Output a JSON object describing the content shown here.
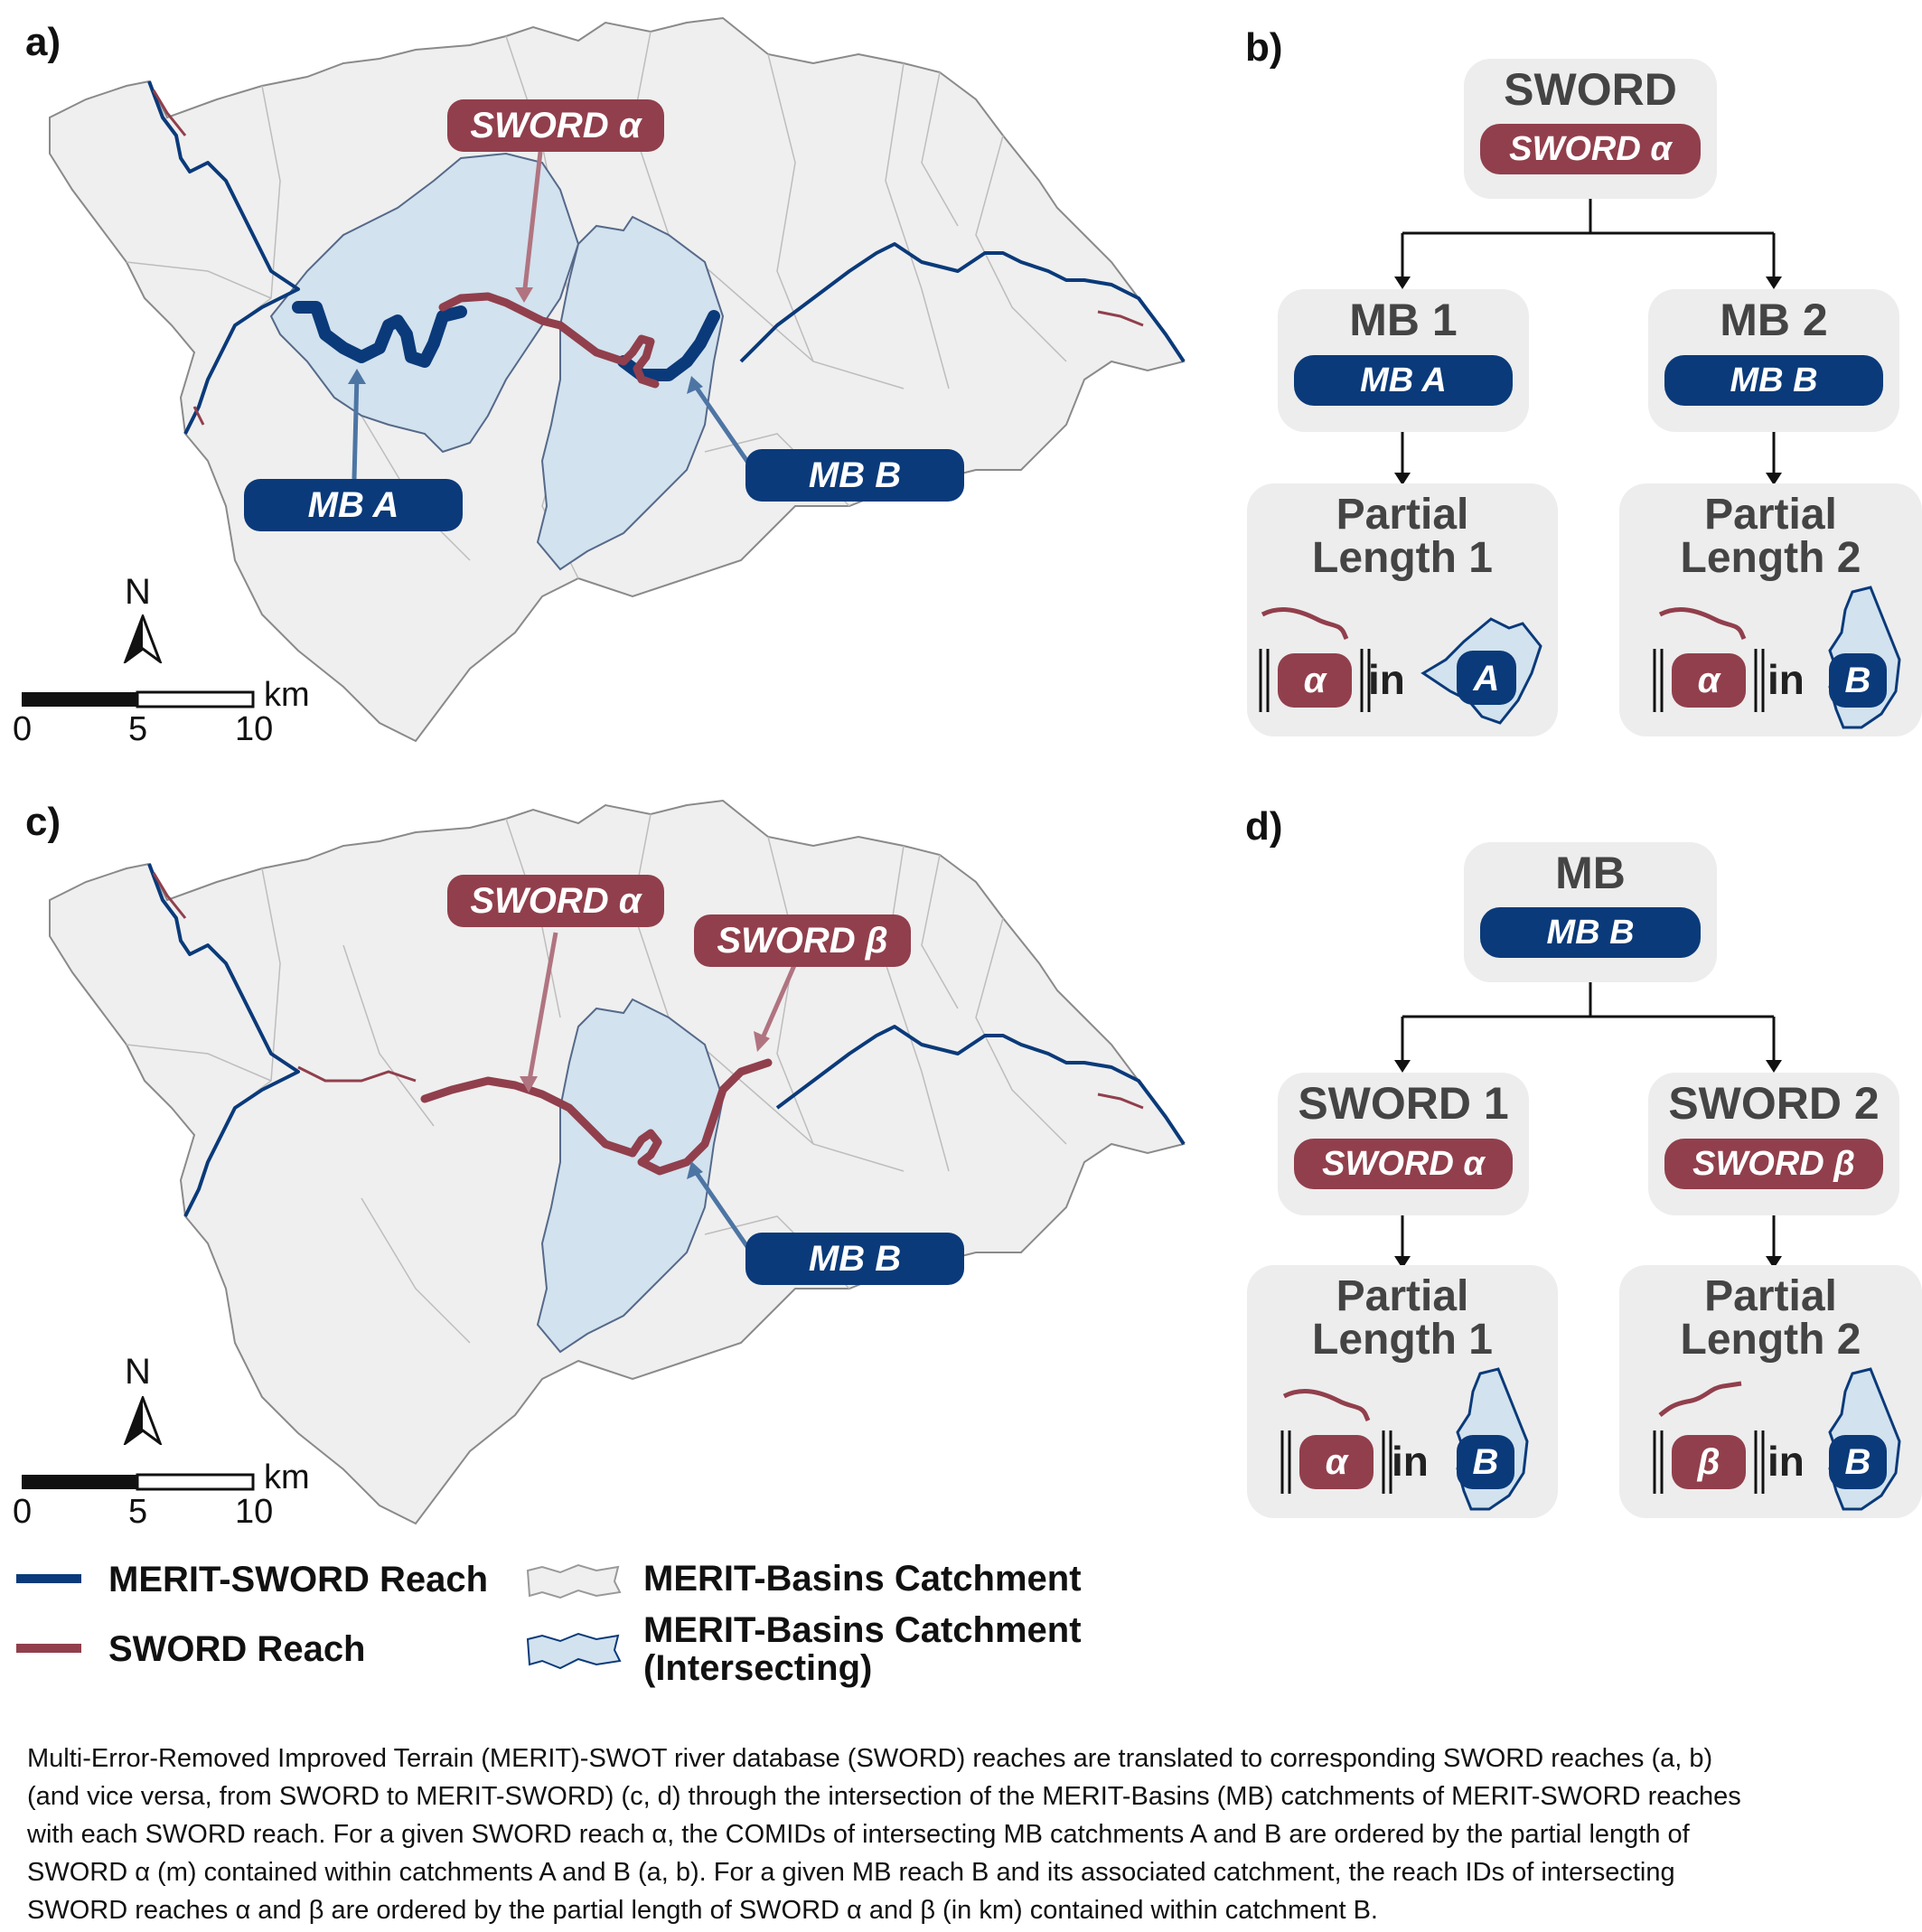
{
  "panels": {
    "a": "a)",
    "b": "b)",
    "c": "c)",
    "d": "d)"
  },
  "map_a": {
    "label_sword_alpha": "SWORD α",
    "label_mb_a": "MB A",
    "label_mb_b": "MB B",
    "north": "N",
    "scale_unit": "km",
    "scale_ticks": [
      "0",
      "5",
      "10"
    ]
  },
  "map_c": {
    "label_sword_alpha": "SWORD α",
    "label_sword_beta": "SWORD β",
    "label_mb_b": "MB B",
    "north": "N",
    "scale_unit": "km",
    "scale_ticks": [
      "0",
      "5",
      "10"
    ]
  },
  "tree_b": {
    "root_title": "SWORD",
    "root_pill": "SWORD α",
    "left_title": "MB 1",
    "left_pill": "MB A",
    "right_title": "MB 2",
    "right_pill": "MB B",
    "left_leaf_line1": "Partial",
    "left_leaf_line2": "Length 1",
    "right_leaf_line1": "Partial",
    "right_leaf_line2": "Length 2",
    "left_symbol": "α",
    "right_symbol": "α",
    "in_word": "in",
    "left_catch": "A",
    "right_catch": "B"
  },
  "tree_d": {
    "root_title": "MB",
    "root_pill": "MB B",
    "left_title": "SWORD 1",
    "left_pill": "SWORD α",
    "right_title": "SWORD 2",
    "right_pill": "SWORD β",
    "left_leaf_line1": "Partial",
    "left_leaf_line2": "Length 1",
    "right_leaf_line1": "Partial",
    "right_leaf_line2": "Length 2",
    "left_symbol": "α",
    "right_symbol": "β",
    "in_word": "in",
    "left_catch": "B",
    "right_catch": "B"
  },
  "legend": {
    "merit_sword_reach": "MERIT-SWORD Reach",
    "sword_reach": "SWORD Reach",
    "mb_catchment": "MERIT-Basins Catchment",
    "mb_catchment_intersecting_1": "MERIT-Basins Catchment",
    "mb_catchment_intersecting_2": "(Intersecting)"
  },
  "caption": [
    "Multi-Error-Removed Improved Terrain (MERIT)-SWOT river database (SWORD) reaches are translated to corresponding SWORD reaches (a, b)",
    "(and vice versa, from SWORD to MERIT-SWORD) (c, d) through the intersection of the MERIT-Basins (MB) catchments of MERIT-SWORD reaches",
    "with each SWORD reach. For a given SWORD reach α, the COMIDs of intersecting MB catchments A and B are ordered by the partial length of",
    "SWORD α (m) contained within catchments A and B (a, b). For a given MB reach B and its associated catchment, the reach IDs of intersecting",
    "SWORD reaches α and β are ordered by the partial length of SWORD α and β (in km) contained within catchment B."
  ],
  "colors": {
    "sword": "#913f4c",
    "merit": "#0a3a7a",
    "catchment": "#efefef",
    "catchment_intersect": "#d2e2ee",
    "box": "#ededed"
  }
}
